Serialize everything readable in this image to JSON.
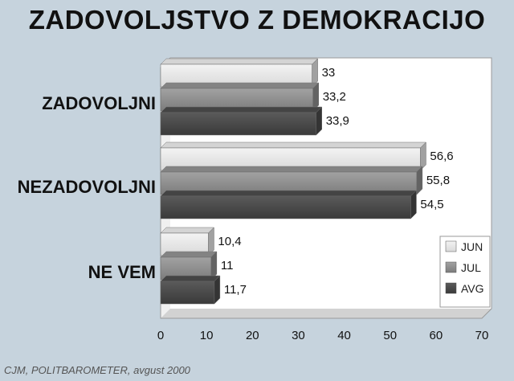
{
  "source": "CJM, POLITBAROMETER, avgust 2000",
  "chart_data": {
    "type": "bar",
    "orientation": "horizontal",
    "title": "ZADOVOLJSTVO Z DEMOKRACIJO",
    "categories": [
      "ZADOVOLJNI",
      "NEZADOVOLJNI",
      "NE VEM"
    ],
    "series": [
      {
        "name": "JUN",
        "values": [
          33,
          56.6,
          10.4
        ],
        "labels": [
          "33",
          "56,6",
          "10,4"
        ],
        "color": "#e6e6e6"
      },
      {
        "name": "JUL",
        "values": [
          33.2,
          55.8,
          11
        ],
        "labels": [
          "33,2",
          "55,8",
          "11"
        ],
        "color": "#8e8e8e"
      },
      {
        "name": "AVG",
        "values": [
          33.9,
          54.5,
          11.7
        ],
        "labels": [
          "33,9",
          "54,5",
          "11,7"
        ],
        "color": "#4a4a4a"
      }
    ],
    "xlim": [
      0,
      70
    ],
    "xticks": [
      "0",
      "10",
      "20",
      "30",
      "40",
      "50",
      "60",
      "70"
    ],
    "legend_position": "bottom-right",
    "grid": false
  }
}
